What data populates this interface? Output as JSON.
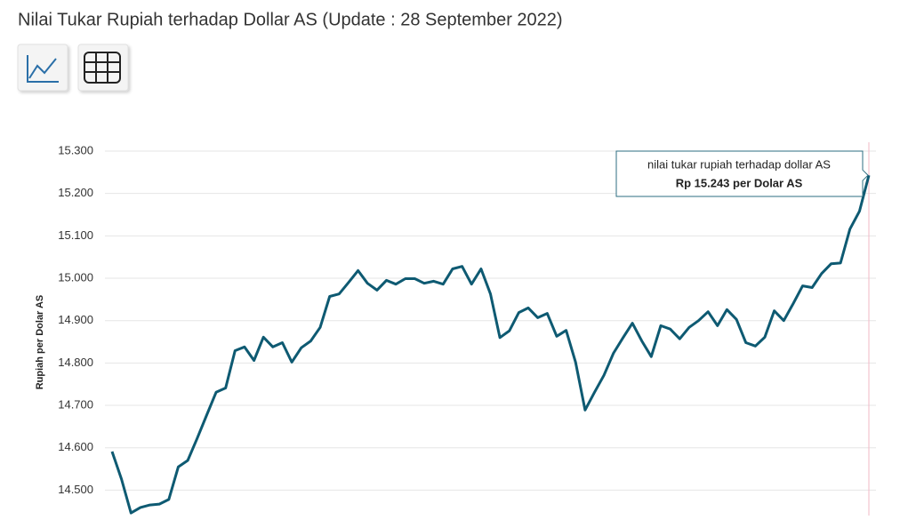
{
  "chart_data": {
    "type": "line",
    "title": "Nilai Tukar Rupiah terhadap Dollar AS (Update : 28 September 2022)",
    "y_label": "Rupiah per Dolar AS",
    "series": [
      {
        "name": "nilai tukar rupiah terhadap dollar AS",
        "color": "#0e5a72",
        "values": [
          14591,
          14526,
          14446,
          14459,
          14465,
          14467,
          14478,
          14555,
          14570,
          14622,
          14677,
          14731,
          14741,
          14829,
          14838,
          14806,
          14861,
          14838,
          14848,
          14802,
          14836,
          14852,
          14884,
          14957,
          14963,
          14990,
          15018,
          14988,
          14972,
          14995,
          14986,
          14999,
          14999,
          14988,
          14993,
          14986,
          15022,
          15028,
          14986,
          15022,
          14963,
          14860,
          14876,
          14919,
          14930,
          14907,
          14917,
          14863,
          14877,
          14802,
          14689,
          14731,
          14771,
          14823,
          14859,
          14894,
          14852,
          14815,
          14888,
          14880,
          14857,
          14884,
          14900,
          14921,
          14888,
          14926,
          14903,
          14848,
          14840,
          14861,
          14923,
          14900,
          14940,
          14982,
          14978,
          15011,
          15034,
          15036,
          15116,
          15158,
          15243
        ]
      }
    ],
    "ylim": [
      14440,
      15300
    ],
    "yticks": [
      {
        "value": 14500,
        "label": "14.500"
      },
      {
        "value": 14600,
        "label": "14.600"
      },
      {
        "value": 14700,
        "label": "14.700"
      },
      {
        "value": 14800,
        "label": "14.800"
      },
      {
        "value": 14900,
        "label": "14.900"
      },
      {
        "value": 15000,
        "label": "15.000"
      },
      {
        "value": 15100,
        "label": "15.100"
      },
      {
        "value": 15200,
        "label": "15.200"
      },
      {
        "value": 15300,
        "label": "15.300"
      }
    ],
    "grid": true,
    "tooltip": {
      "title": "nilai tukar rupiah terhadap dollar AS",
      "text": "Rp 15.243 per Dolar AS"
    }
  }
}
